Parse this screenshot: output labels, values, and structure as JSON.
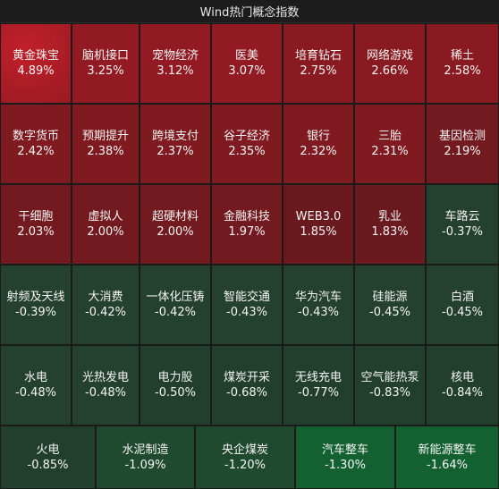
{
  "title": "Wind热门概念指数",
  "colors": {
    "up_strong": "#b01a24",
    "up_mid": "#8a1a22",
    "up_weak": "#6a1a1e",
    "down_weak": "#24402e",
    "down_mid": "#1f4a30",
    "down_strong": "#136030"
  },
  "chart_data": {
    "type": "heatmap",
    "title": "Wind热门概念指数",
    "unit": "%",
    "rows": [
      [
        {
          "name": "黄金珠宝",
          "value": 4.89
        },
        {
          "name": "脑机接口",
          "value": 3.25
        },
        {
          "name": "宠物经济",
          "value": 3.12
        },
        {
          "name": "医美",
          "value": 3.07
        },
        {
          "name": "培育钻石",
          "value": 2.75
        },
        {
          "name": "网络游戏",
          "value": 2.66
        },
        {
          "name": "稀土",
          "value": 2.58
        }
      ],
      [
        {
          "name": "数字货币",
          "value": 2.42
        },
        {
          "name": "预期提升",
          "value": 2.38
        },
        {
          "name": "跨境支付",
          "value": 2.37
        },
        {
          "name": "谷子经济",
          "value": 2.35
        },
        {
          "name": "银行",
          "value": 2.32
        },
        {
          "name": "三胎",
          "value": 2.31
        },
        {
          "name": "基因检测",
          "value": 2.19
        }
      ],
      [
        {
          "name": "干细胞",
          "value": 2.03
        },
        {
          "name": "虚拟人",
          "value": 2.0
        },
        {
          "name": "超硬材料",
          "value": 2.0
        },
        {
          "name": "金融科技",
          "value": 1.97
        },
        {
          "name": "WEB3.0",
          "value": 1.85
        },
        {
          "name": "乳业",
          "value": 1.83
        },
        {
          "name": "车路云",
          "value": -0.37
        }
      ],
      [
        {
          "name": "射频及天线",
          "value": -0.39
        },
        {
          "name": "大消费",
          "value": -0.42
        },
        {
          "name": "一体化压铸",
          "value": -0.42
        },
        {
          "name": "智能交通",
          "value": -0.43
        },
        {
          "name": "华为汽车",
          "value": -0.43
        },
        {
          "name": "硅能源",
          "value": -0.45
        },
        {
          "name": "白酒",
          "value": -0.45
        }
      ],
      [
        {
          "name": "水电",
          "value": -0.48
        },
        {
          "name": "光热发电",
          "value": -0.48
        },
        {
          "name": "电力股",
          "value": -0.5
        },
        {
          "name": "煤炭开采",
          "value": -0.68
        },
        {
          "name": "无线充电",
          "value": -0.77
        },
        {
          "name": "空气能热泵",
          "value": -0.83
        },
        {
          "name": "核电",
          "value": -0.84
        }
      ],
      [
        {
          "name": "火电",
          "value": -0.85
        },
        {
          "name": "水泥制造",
          "value": -1.09
        },
        {
          "name": "央企煤炭",
          "value": -1.2
        },
        {
          "name": "汽车整车",
          "value": -1.3
        },
        {
          "name": "新能源整车",
          "value": -1.64
        }
      ]
    ]
  }
}
